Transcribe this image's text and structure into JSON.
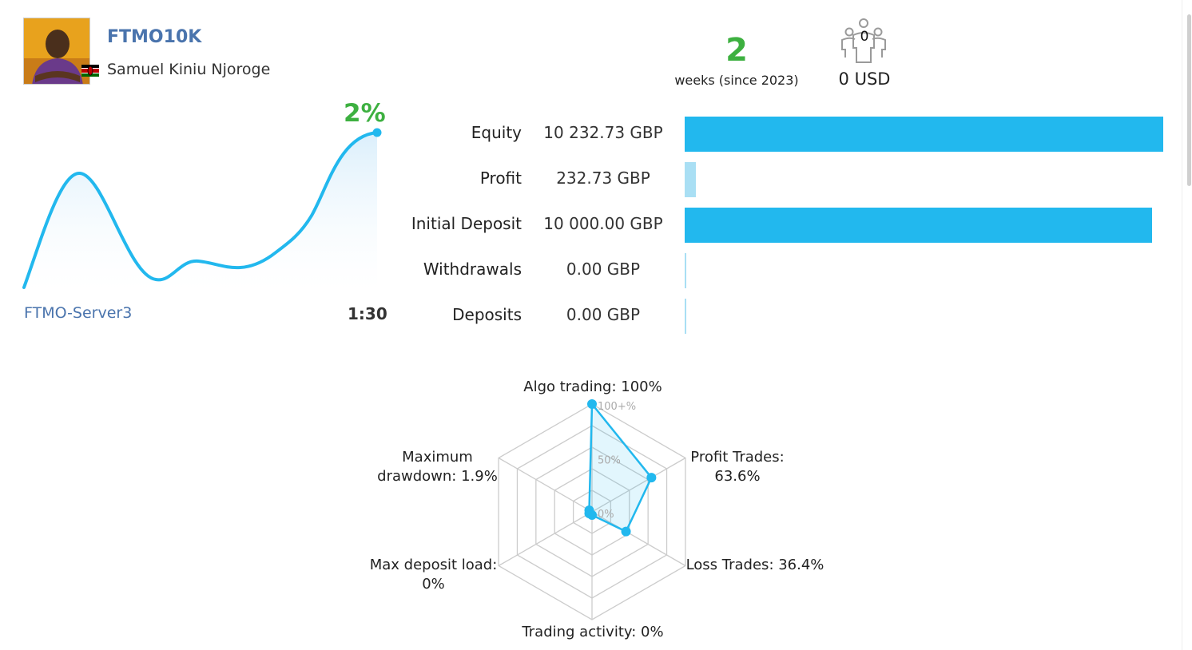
{
  "header": {
    "account_name": "FTMO10K",
    "owner_name": "Samuel Kiniu Njoroge",
    "weeks_value": "2",
    "weeks_label": "weeks (since 2023)",
    "subscribers_count": "0",
    "subscribers_usd": "0 USD"
  },
  "growth": {
    "percent_label": "2%",
    "server": "FTMO-Server3",
    "leverage": "1:30"
  },
  "stats": [
    {
      "label": "Equity",
      "value": "10 232.73 GBP",
      "bar_fraction": 1.0,
      "bar_color": "#22b8ee"
    },
    {
      "label": "Profit",
      "value": "232.73 GBP",
      "bar_fraction": 0.0227,
      "bar_color": "#a9dff4"
    },
    {
      "label": "Initial Deposit",
      "value": "10 000.00 GBP",
      "bar_fraction": 0.977,
      "bar_color": "#22b8ee"
    },
    {
      "label": "Withdrawals",
      "value": "0.00 GBP",
      "bar_fraction": 0.0,
      "bar_color": "#a9dff4"
    },
    {
      "label": "Deposits",
      "value": "0.00 GBP",
      "bar_fraction": 0.0,
      "bar_color": "#a9dff4"
    }
  ],
  "chart_data": {
    "type": "radar",
    "scale_labels": [
      "100+%",
      "50%",
      "0%"
    ],
    "axes": [
      {
        "label_lines": [
          "Algo trading: 100%"
        ],
        "value": 100
      },
      {
        "label_lines": [
          "Profit Trades:",
          "63.6%"
        ],
        "value": 63.6
      },
      {
        "label_lines": [
          "Loss Trades: 36.4%"
        ],
        "value": 36.4
      },
      {
        "label_lines": [
          "Trading activity: 0%"
        ],
        "value": 0
      },
      {
        "label_lines": [
          "Max deposit load:",
          "0%"
        ],
        "value": 0
      },
      {
        "label_lines": [
          "Maximum",
          "drawdown: 1.9%"
        ],
        "value": 1.9
      }
    ]
  },
  "colors": {
    "accent_blue": "#22b8ee",
    "light_blue": "#a9dff4",
    "green": "#3db040",
    "link_blue": "#4a74ad"
  }
}
